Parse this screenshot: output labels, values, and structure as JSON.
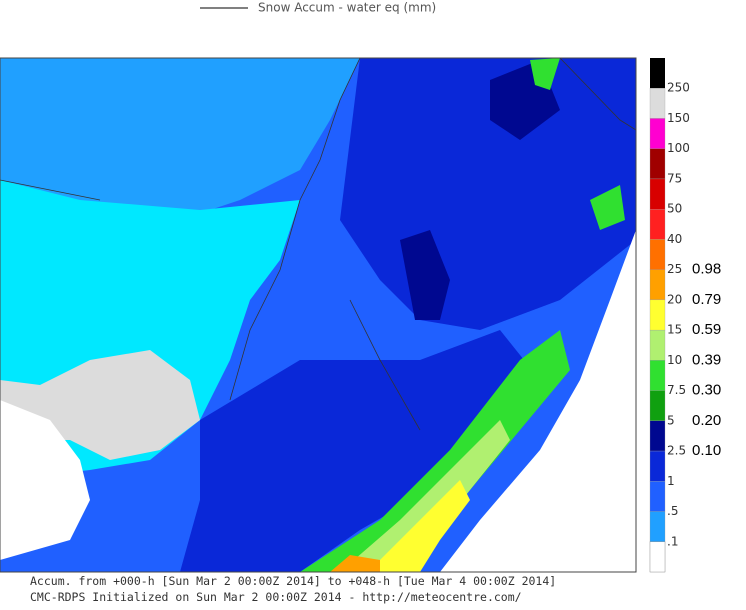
{
  "legend_line": "Snow Accum - water eq (mm)",
  "scale": [
    {
      "label": "250",
      "color": "#dcdcdc"
    },
    {
      "label": "150",
      "color": "#ff00d0"
    },
    {
      "label": "100",
      "color": "#a00000"
    },
    {
      "label": "75",
      "color": "#d80000"
    },
    {
      "label": "50",
      "color": "#ff2020"
    },
    {
      "label": "40",
      "color": "#ff7000"
    },
    {
      "label": "25",
      "color": "#ffa000",
      "inches": "0.98"
    },
    {
      "label": "20",
      "color": "#ffff30",
      "inches": "0.79"
    },
    {
      "label": "15",
      "color": "#b0f070",
      "inches": "0.59"
    },
    {
      "label": "10",
      "color": "#30e030",
      "inches": "0.39"
    },
    {
      "label": "7.5",
      "color": "#10a010",
      "inches": "0.30"
    },
    {
      "label": "5",
      "color": "#000890",
      "inches": "0.20"
    },
    {
      "label": "2.5",
      "color": "#0a28d8",
      "inches": "0.10"
    },
    {
      "label": "1",
      "color": "#2060ff"
    },
    {
      "label": ".5",
      "color": "#20a0ff"
    },
    {
      "label": ".1",
      "color": "#00e8ff"
    }
  ],
  "scale_top_color": "#000000",
  "scale_bottom_color": "#ffffff",
  "footer": [
    "Accum. from +000-h [Sun Mar 2 00:00Z 2014] to +048-h [Tue Mar 4 00:00Z 2014]",
    "CMC-RDPS Initialized on Sun Mar 2 00:00Z 2014 - http://meteocentre.com/"
  ]
}
